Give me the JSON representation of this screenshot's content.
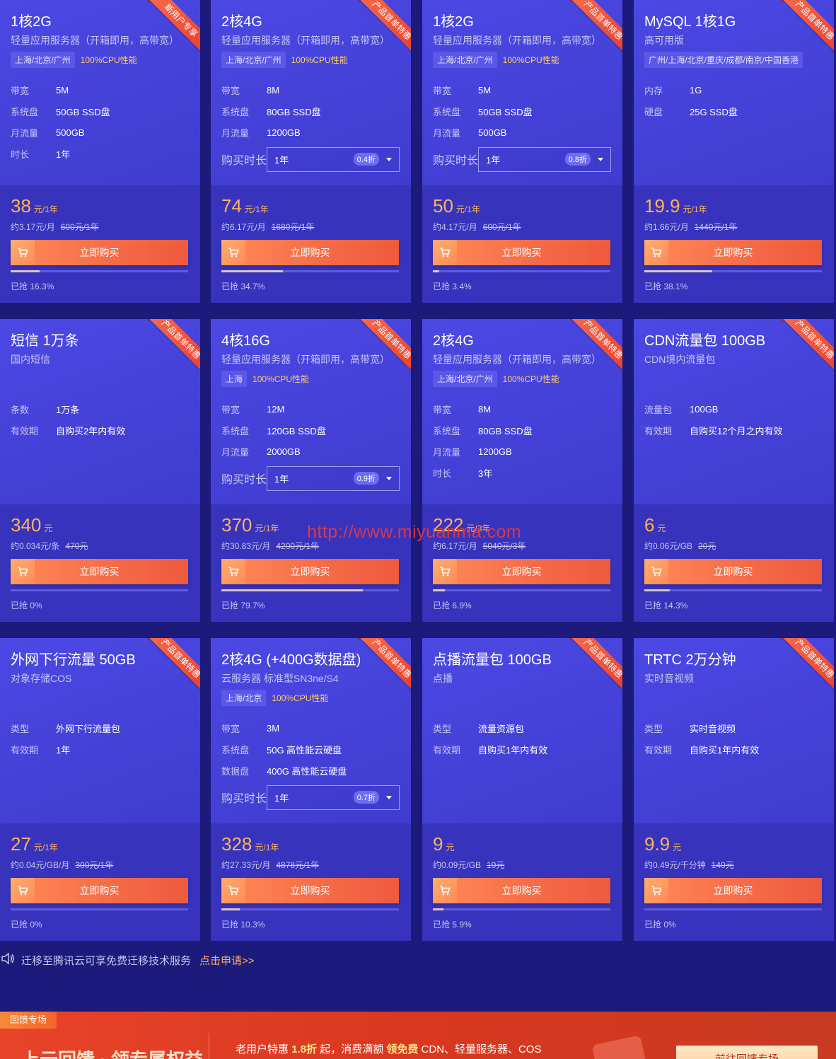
{
  "colors": {
    "accent": "#ffb35c",
    "card_bg": "#4340d6",
    "ribbon": "#e8402f",
    "button": "#f56a46"
  },
  "buy_label": "立即购买",
  "duration_label": "购买时长",
  "cards": [
    {
      "title": "1核2G",
      "subtitle": "轻量应用服务器（开箱即用，高带宽）",
      "ribbon": "新用户专享",
      "region": "上海/北京/广州",
      "cpu": "100%CPU性能",
      "specs": [
        {
          "label": "带宽",
          "value": "5M"
        },
        {
          "label": "系统盘",
          "value": "50GB SSD盘"
        },
        {
          "label": "月流量",
          "value": "500GB"
        },
        {
          "label": "时长",
          "value": "1年"
        }
      ],
      "price": "38",
      "unit": "元/1年",
      "sub": "约3.17元/月",
      "orig": "600元/1年",
      "progress": 16.3,
      "sold": "已抢 16.3%"
    },
    {
      "title": "2核4G",
      "subtitle": "轻量应用服务器（开箱即用，高带宽）",
      "ribbon": "产品首单特惠",
      "region": "上海/北京/广州",
      "cpu": "100%CPU性能",
      "specs": [
        {
          "label": "带宽",
          "value": "8M"
        },
        {
          "label": "系统盘",
          "value": "80GB SSD盘"
        },
        {
          "label": "月流量",
          "value": "1200GB"
        }
      ],
      "duration": {
        "value": "1年",
        "discount": "0.4折"
      },
      "price": "74",
      "unit": "元/1年",
      "sub": "约6.17元/月",
      "orig": "1680元/1年",
      "progress": 34.7,
      "sold": "已抢 34.7%"
    },
    {
      "title": "1核2G",
      "subtitle": "轻量应用服务器（开箱即用，高带宽）",
      "ribbon": "产品首单特惠",
      "region": "上海/北京/广州",
      "cpu": "100%CPU性能",
      "specs": [
        {
          "label": "带宽",
          "value": "5M"
        },
        {
          "label": "系统盘",
          "value": "50GB SSD盘"
        },
        {
          "label": "月流量",
          "value": "500GB"
        }
      ],
      "duration": {
        "value": "1年",
        "discount": "0.8折"
      },
      "price": "50",
      "unit": "元/1年",
      "sub": "约4.17元/月",
      "orig": "600元/1年",
      "progress": 3.4,
      "sold": "已抢 3.4%"
    },
    {
      "title": "MySQL 1核1G",
      "subtitle": "高可用版",
      "ribbon": "产品首单特惠",
      "region": "广州/上海/北京/重庆/成都/南京/中国香港",
      "cpu": "",
      "specs": [
        {
          "label": "内存",
          "value": "1G"
        },
        {
          "label": "硬盘",
          "value": "25G SSD盘"
        }
      ],
      "price": "19.9",
      "unit": "元/1年",
      "sub": "约1.66元/月",
      "orig": "1440元/1年",
      "progress": 38.1,
      "sold": "已抢 38.1%"
    },
    {
      "title": "短信 1万条",
      "subtitle": "国内短信",
      "ribbon": "产品首单特惠",
      "region": "",
      "cpu": "",
      "specs": [
        {
          "label": "条数",
          "value": "1万条"
        },
        {
          "label": "有效期",
          "value": "自购买2年内有效"
        }
      ],
      "price": "340",
      "unit": "元",
      "sub": "约0.034元/条",
      "orig": "470元",
      "progress": 0,
      "sold": "已抢 0%"
    },
    {
      "title": "4核16G",
      "subtitle": "轻量应用服务器（开箱即用，高带宽）",
      "ribbon": "产品首单特惠",
      "region": "上海",
      "cpu": "100%CPU性能",
      "specs": [
        {
          "label": "带宽",
          "value": "12M"
        },
        {
          "label": "系统盘",
          "value": "120GB SSD盘"
        },
        {
          "label": "月流量",
          "value": "2000GB"
        }
      ],
      "duration": {
        "value": "1年",
        "discount": "0.9折"
      },
      "price": "370",
      "unit": "元/1年",
      "sub": "约30.83元/月",
      "orig": "4200元/1年",
      "progress": 79.7,
      "sold": "已抢 79.7%"
    },
    {
      "title": "2核4G",
      "subtitle": "轻量应用服务器（开箱即用，高带宽）",
      "ribbon": "产品首单特惠",
      "region": "上海/北京/广州",
      "cpu": "100%CPU性能",
      "specs": [
        {
          "label": "带宽",
          "value": "8M"
        },
        {
          "label": "系统盘",
          "value": "80GB SSD盘"
        },
        {
          "label": "月流量",
          "value": "1200GB"
        },
        {
          "label": "时长",
          "value": "3年"
        }
      ],
      "price": "222",
      "unit": "元/3年",
      "sub": "约6.17元/月",
      "orig": "5040元/3年",
      "progress": 6.9,
      "sold": "已抢 6.9%"
    },
    {
      "title": "CDN流量包 100GB",
      "subtitle": "CDN境内流量包",
      "ribbon": "产品首单特惠",
      "region": "",
      "cpu": "",
      "specs": [
        {
          "label": "流量包",
          "value": "100GB"
        },
        {
          "label": "有效期",
          "value": "自购买12个月之内有效"
        }
      ],
      "price": "6",
      "unit": "元",
      "sub": "约0.06元/GB",
      "orig": "20元",
      "progress": 14.3,
      "sold": "已抢 14.3%"
    },
    {
      "title": "外网下行流量 50GB",
      "subtitle": "对象存储COS",
      "ribbon": "产品首单特惠",
      "region": "",
      "cpu": "",
      "specs": [
        {
          "label": "类型",
          "value": "外网下行流量包"
        },
        {
          "label": "有效期",
          "value": "1年"
        }
      ],
      "price": "27",
      "unit": "元/1年",
      "sub": "约0.04元/GB/月",
      "orig": "300元/1年",
      "progress": 0,
      "sold": "已抢 0%"
    },
    {
      "title": "2核4G (+400G数据盘)",
      "subtitle": "云服务器 标准型SN3ne/S4",
      "ribbon": "产品首单特惠",
      "region": "上海/北京",
      "cpu": "100%CPU性能",
      "specs": [
        {
          "label": "带宽",
          "value": "3M"
        },
        {
          "label": "系统盘",
          "value": "50G 高性能云硬盘"
        },
        {
          "label": "数据盘",
          "value": "400G 高性能云硬盘"
        }
      ],
      "duration": {
        "value": "1年",
        "discount": "0.7折"
      },
      "price": "328",
      "unit": "元/1年",
      "sub": "约27.33元/月",
      "orig": "4878元/1年",
      "progress": 10.3,
      "sold": "已抢 10.3%"
    },
    {
      "title": "点播流量包 100GB",
      "subtitle": "点播",
      "ribbon": "产品首单特惠",
      "region": "",
      "cpu": "",
      "specs": [
        {
          "label": "类型",
          "value": "流量资源包"
        },
        {
          "label": "有效期",
          "value": "自购买1年内有效"
        }
      ],
      "price": "9",
      "unit": "元",
      "sub": "约0.09元/GB",
      "orig": "19元",
      "progress": 5.9,
      "sold": "已抢 5.9%"
    },
    {
      "title": "TRTC 2万分钟",
      "subtitle": "实时音视频",
      "ribbon": "产品首单特惠",
      "region": "",
      "cpu": "",
      "specs": [
        {
          "label": "类型",
          "value": "实时音视频"
        },
        {
          "label": "有效期",
          "value": "自购买1年内有效"
        }
      ],
      "price": "9.9",
      "unit": "元",
      "sub": "约0.49元/千分钟",
      "orig": "140元",
      "progress": 0,
      "sold": "已抢 0%"
    }
  ],
  "watermark": "http://www.miyuanma.com",
  "notice": {
    "text": "迁移至腾讯云可享免费迁移技术服务",
    "link": "点击申请>>"
  },
  "banner": {
    "tag": "回馈专场",
    "big": "上云回馈 · 领专属权益",
    "text_pre": "老用户特惠 ",
    "text_hl1": "1.8折",
    "text_mid": " 起，消费满额 ",
    "text_hl2": "领免费",
    "text_post": " CDN、轻量服务器、COS",
    "button": "前往回馈专场"
  }
}
